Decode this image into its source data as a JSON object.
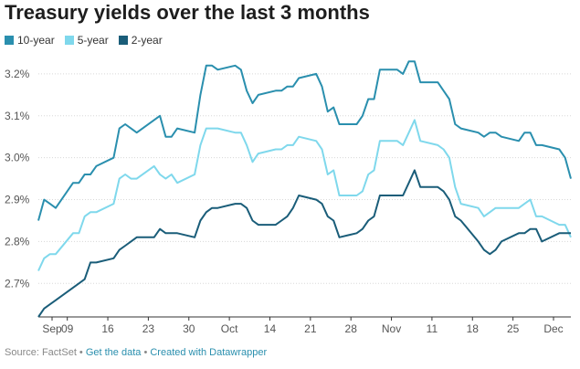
{
  "header": {
    "title": "Treasury yields over the last 3 months"
  },
  "footer": {
    "source": "Source: FactSet",
    "sep1": " • ",
    "get_data": "Get the data",
    "sep2": " • ",
    "created": "Created with Datawrapper"
  },
  "chart_data": {
    "type": "line",
    "title": "Treasury yields over the last 3 months",
    "xlabel": "",
    "ylabel": "",
    "x_ticks": [
      "Sep",
      "09",
      "16",
      "23",
      "30",
      "Oct",
      "14",
      "21",
      "28",
      "Nov",
      "11",
      "18",
      "25",
      "Dec"
    ],
    "y_ticks": [
      "3.2%",
      "3.1%",
      "3.0%",
      "2.9%",
      "2.8%",
      "2.7%"
    ],
    "y_tick_values": [
      3.2,
      3.1,
      3.0,
      2.9,
      2.8,
      2.7
    ],
    "ylim": [
      2.62,
      3.25
    ],
    "xlim": [
      "2018-09-04",
      "2018-12-05"
    ],
    "grid": "horizontal dotted",
    "legend": "top-left",
    "x": [
      "2018-09-04",
      "2018-09-05",
      "2018-09-06",
      "2018-09-07",
      "2018-09-10",
      "2018-09-11",
      "2018-09-12",
      "2018-09-13",
      "2018-09-14",
      "2018-09-17",
      "2018-09-18",
      "2018-09-19",
      "2018-09-20",
      "2018-09-21",
      "2018-09-24",
      "2018-09-25",
      "2018-09-26",
      "2018-09-27",
      "2018-09-28",
      "2018-10-01",
      "2018-10-02",
      "2018-10-03",
      "2018-10-04",
      "2018-10-05",
      "2018-10-08",
      "2018-10-09",
      "2018-10-10",
      "2018-10-11",
      "2018-10-12",
      "2018-10-15",
      "2018-10-16",
      "2018-10-17",
      "2018-10-18",
      "2018-10-19",
      "2018-10-22",
      "2018-10-23",
      "2018-10-24",
      "2018-10-25",
      "2018-10-26",
      "2018-10-29",
      "2018-10-30",
      "2018-10-31",
      "2018-11-01",
      "2018-11-02",
      "2018-11-05",
      "2018-11-06",
      "2018-11-07",
      "2018-11-08",
      "2018-11-09",
      "2018-11-12",
      "2018-11-13",
      "2018-11-14",
      "2018-11-15",
      "2018-11-16",
      "2018-11-19",
      "2018-11-20",
      "2018-11-21",
      "2018-11-22",
      "2018-11-23",
      "2018-11-26",
      "2018-11-27",
      "2018-11-28",
      "2018-11-29",
      "2018-11-30",
      "2018-12-03",
      "2018-12-04",
      "2018-12-05"
    ],
    "series": [
      {
        "name": "10-year",
        "color": "#2a8fae",
        "values": [
          2.85,
          2.9,
          2.89,
          2.88,
          2.94,
          2.94,
          2.96,
          2.96,
          2.98,
          3.0,
          3.07,
          3.08,
          3.07,
          3.06,
          3.09,
          3.1,
          3.05,
          3.05,
          3.07,
          3.06,
          3.15,
          3.22,
          3.22,
          3.21,
          3.22,
          3.21,
          3.16,
          3.13,
          3.15,
          3.16,
          3.16,
          3.17,
          3.17,
          3.19,
          3.2,
          3.17,
          3.11,
          3.12,
          3.08,
          3.08,
          3.1,
          3.14,
          3.14,
          3.21,
          3.21,
          3.2,
          3.23,
          3.23,
          3.18,
          3.18,
          3.16,
          3.14,
          3.08,
          3.07,
          3.06,
          3.05,
          3.06,
          3.06,
          3.05,
          3.04,
          3.06,
          3.06,
          3.03,
          3.03,
          3.02,
          3.0,
          2.95
        ]
      },
      {
        "name": "5-year",
        "color": "#7fd8ec",
        "values": [
          2.73,
          2.76,
          2.77,
          2.77,
          2.82,
          2.82,
          2.86,
          2.87,
          2.87,
          2.89,
          2.95,
          2.96,
          2.95,
          2.95,
          2.98,
          2.96,
          2.95,
          2.96,
          2.94,
          2.96,
          3.03,
          3.07,
          3.07,
          3.07,
          3.06,
          3.06,
          3.03,
          2.99,
          3.01,
          3.02,
          3.02,
          3.03,
          3.03,
          3.05,
          3.04,
          3.02,
          2.96,
          2.97,
          2.91,
          2.91,
          2.92,
          2.96,
          2.97,
          3.04,
          3.04,
          3.03,
          3.06,
          3.09,
          3.04,
          3.03,
          3.02,
          3.0,
          2.93,
          2.89,
          2.88,
          2.86,
          2.87,
          2.88,
          2.88,
          2.88,
          2.89,
          2.9,
          2.86,
          2.86,
          2.84,
          2.84,
          2.81
        ]
      },
      {
        "name": "2-year",
        "color": "#1a5d79",
        "values": [
          2.62,
          2.64,
          2.65,
          2.66,
          2.69,
          2.7,
          2.71,
          2.75,
          2.75,
          2.76,
          2.78,
          2.79,
          2.8,
          2.81,
          2.81,
          2.83,
          2.82,
          2.82,
          2.82,
          2.81,
          2.85,
          2.87,
          2.88,
          2.88,
          2.89,
          2.89,
          2.88,
          2.85,
          2.84,
          2.84,
          2.85,
          2.86,
          2.88,
          2.91,
          2.9,
          2.89,
          2.86,
          2.85,
          2.81,
          2.82,
          2.83,
          2.85,
          2.86,
          2.91,
          2.91,
          2.91,
          2.94,
          2.97,
          2.93,
          2.93,
          2.92,
          2.9,
          2.86,
          2.85,
          2.8,
          2.78,
          2.77,
          2.78,
          2.8,
          2.82,
          2.82,
          2.83,
          2.83,
          2.8,
          2.82,
          2.82,
          2.82
        ]
      }
    ]
  }
}
